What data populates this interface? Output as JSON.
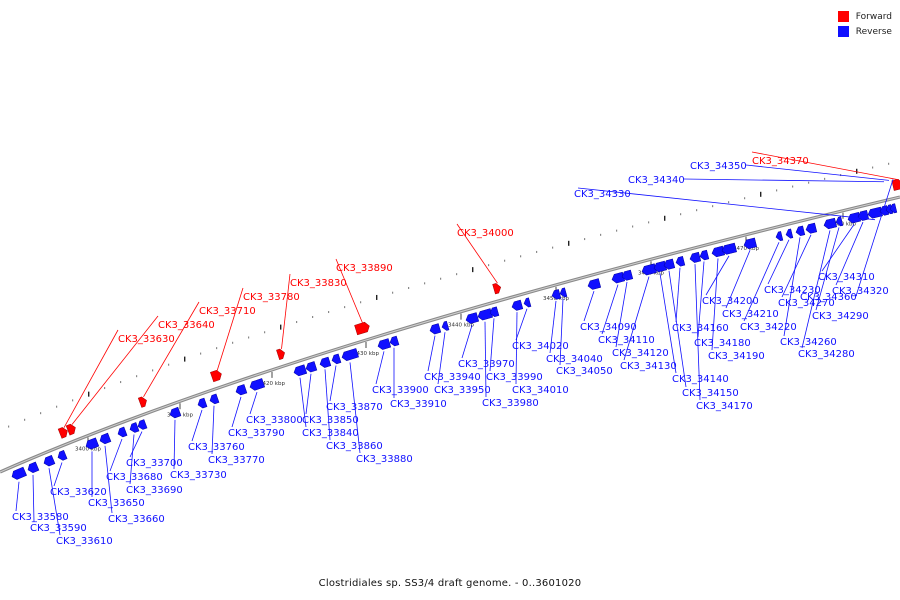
{
  "legend": {
    "forward": {
      "label": "Forward",
      "color": "#ff0000"
    },
    "reverse": {
      "label": "Reverse",
      "color": "#1010ff"
    }
  },
  "caption": "Clostridiales sp. SS3/4 draft genome. - 0..3601020",
  "scale_labels": [
    "3400 kbp",
    "3410 kbp",
    "3420 kbp",
    "3430 kbp",
    "3440 kbp",
    "3450 kbp",
    "3460 kbp",
    "3470 kbp",
    "3480 kbp"
  ],
  "forward_genes": [
    "CK3_33630",
    "CK3_33640",
    "CK3_33710",
    "CK3_33780",
    "CK3_33830",
    "CK3_33890",
    "CK3_34000",
    "CK3_34370"
  ],
  "reverse_genes": [
    "CK3_33580",
    "CK3_33590",
    "CK3_33610",
    "CK3_33620",
    "CK3_33650",
    "CK3_33660",
    "CK3_33680",
    "CK3_33690",
    "CK3_33700",
    "CK3_33730",
    "CK3_33760",
    "CK3_33770",
    "CK3_33790",
    "CK3_33800",
    "CK3_33840",
    "CK3_33850",
    "CK3_33860",
    "CK3_33870",
    "CK3_33880",
    "CK3_33900",
    "CK3_33910",
    "CK3_33940",
    "CK3_33950",
    "CK3_33970",
    "CK3_33980",
    "CK3_33990",
    "CK3_34010",
    "CK3_34020",
    "CK3_34040",
    "CK3_34050",
    "CK3_34090",
    "CK3_34110",
    "CK3_34120",
    "CK3_34130",
    "CK3_34140",
    "CK3_34150",
    "CK3_34160",
    "CK3_34170",
    "CK3_34180",
    "CK3_34190",
    "CK3_34200",
    "CK3_34210",
    "CK3_34220",
    "CK3_34230",
    "CK3_34260",
    "CK3_34270",
    "CK3_34280",
    "CK3_34290",
    "CK3_34310",
    "CK3_34320",
    "CK3_34330",
    "CK3_34340",
    "CK3_34350",
    "CK3_34360"
  ]
}
